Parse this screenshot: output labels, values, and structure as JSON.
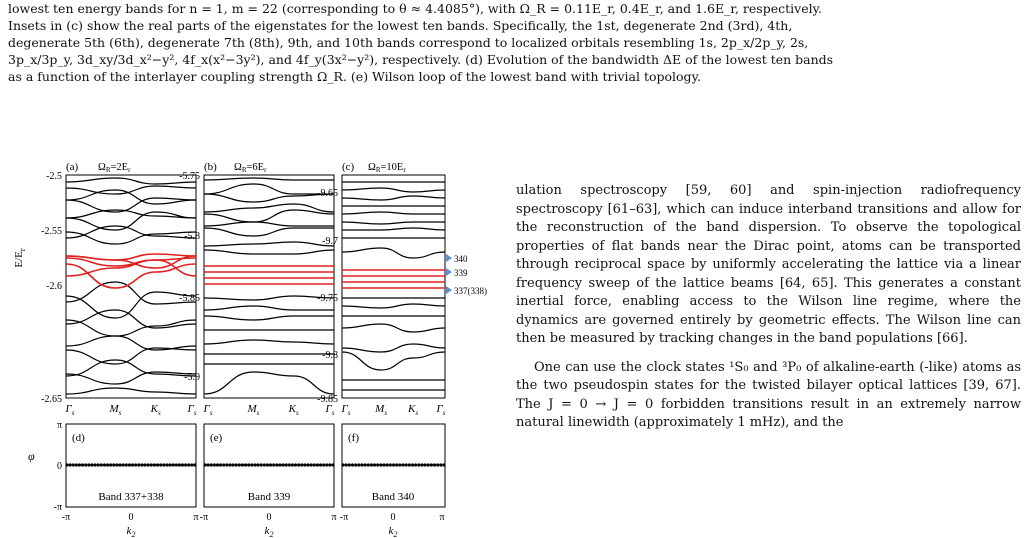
{
  "caption": {
    "lines": [
      "lowest ten energy bands for n = 1, m = 22 (corresponding to θ ≈ 4.4085°), with Ω_R = 0.11E_r, 0.4E_r, and 1.6E_r, respectively.",
      "Insets in (c) show the real parts of the eigenstates for the lowest ten bands. Specifically, the 1st, degenerate 2nd (3rd), 4th,",
      "degenerate 5th (6th), degenerate 7th (8th), 9th, and 10th bands correspond to localized orbitals resembling 1s, 2p_x/2p_y, 2s,",
      "3p_x/3p_y, 3d_xy/3d_x²−y², 4f_x(x²−3y²), and 4f_y(3x²−y²), respectively. (d) Evolution of the bandwidth ΔE of the lowest ten bands",
      "as a function of the interlayer coupling strength Ω_R. (e) Wilson loop of the lowest band with trivial topology."
    ]
  },
  "figure": {
    "panels": [
      {
        "letter": "(a)",
        "omega": "Ω",
        "omega_sub": "R",
        "omega_rest": "=2E",
        "omega_sub2": "r",
        "yticks": [
          "-2.5",
          "-2.55",
          "-2.6",
          "-2.65"
        ]
      },
      {
        "letter": "(b)",
        "omega": "Ω",
        "omega_sub": "R",
        "omega_rest": "=6E",
        "omega_sub2": "r",
        "yticks": [
          "-5.75",
          "-5.8",
          "-5.85",
          "-5.9"
        ]
      },
      {
        "letter": "(c)",
        "omega": "Ω",
        "omega_sub": "R",
        "omega_rest": "=10E",
        "omega_sub2": "r",
        "yticks": [
          "-9.65",
          "-9.7",
          "-9.75",
          "-9.8",
          "-9.85"
        ]
      }
    ],
    "ylabel_main": "E/E",
    "ylabel_sub": "r",
    "kpoints": [
      "Γ",
      "M",
      "K",
      "Γ"
    ],
    "kpoint_sub": "s",
    "band_labels": [
      "340",
      "339",
      "337(338)"
    ],
    "wilson": [
      {
        "letter": "(d)",
        "band": "Band 337+338"
      },
      {
        "letter": "(e)",
        "band": "Band 339"
      },
      {
        "letter": "(f)",
        "band": "Band 340"
      }
    ],
    "phi_label": "φ",
    "phi_ticks": [
      "π",
      "0",
      "-π"
    ],
    "k2_ticks": [
      "-π",
      "0",
      "π"
    ],
    "k2_label": "k",
    "k2_sub": "2"
  },
  "body": {
    "para1": "ulation spectroscopy [59, 60] and spin-injection radiofrequency spectroscopy [61–63], which can induce interband transitions and allow for the reconstruction of the band dispersion. To observe the topological properties of flat bands near the Dirac point, atoms can be transported through reciprocal space by uniformly accelerating the lattice via a linear frequency sweep of the lattice beams [64, 65]. This generates a constant inertial force, enabling access to the Wilson line regime, where the dynamics are governed entirely by geometric effects. The Wilson line can then be measured by tracking changes in the band populations [66].",
    "para2": "One can use the clock states ¹S₀ and ³P₀ of alkaline-earth (-like) atoms as the two pseudospin states for the twisted bilayer optical lattices [39, 67]. The J = 0 → J = 0 forbidden transitions result in an extremely narrow natural linewidth (approximately 1 mHz), and the"
  }
}
